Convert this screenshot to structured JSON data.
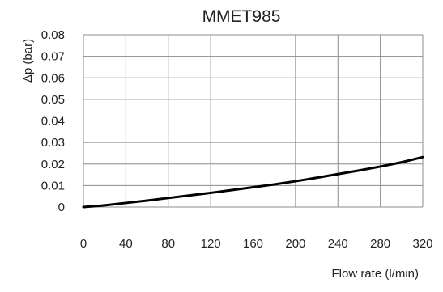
{
  "chart_data": {
    "type": "line",
    "title": "MMET985",
    "xlabel": "Flow rate (l/min)",
    "ylabel": "Δp (bar)",
    "xlim": [
      0,
      320
    ],
    "ylim": [
      0,
      0.08
    ],
    "x_ticks": [
      "0",
      "40",
      "80",
      "120",
      "160",
      "200",
      "240",
      "280",
      "320"
    ],
    "y_ticks": [
      "0",
      "0.01",
      "0.02",
      "0.03",
      "0.04",
      "0.05",
      "0.06",
      "0.07",
      "0.08"
    ],
    "grid": true,
    "series": [
      {
        "x": [
          0,
          20,
          40,
          60,
          80,
          100,
          120,
          140,
          160,
          180,
          200,
          220,
          240,
          260,
          280,
          300,
          320
        ],
        "y": [
          0,
          0.0008,
          0.0019,
          0.003,
          0.0042,
          0.0054,
          0.0066,
          0.0079,
          0.0092,
          0.0105,
          0.012,
          0.0136,
          0.0153,
          0.017,
          0.0188,
          0.0208,
          0.0232
        ]
      }
    ]
  }
}
